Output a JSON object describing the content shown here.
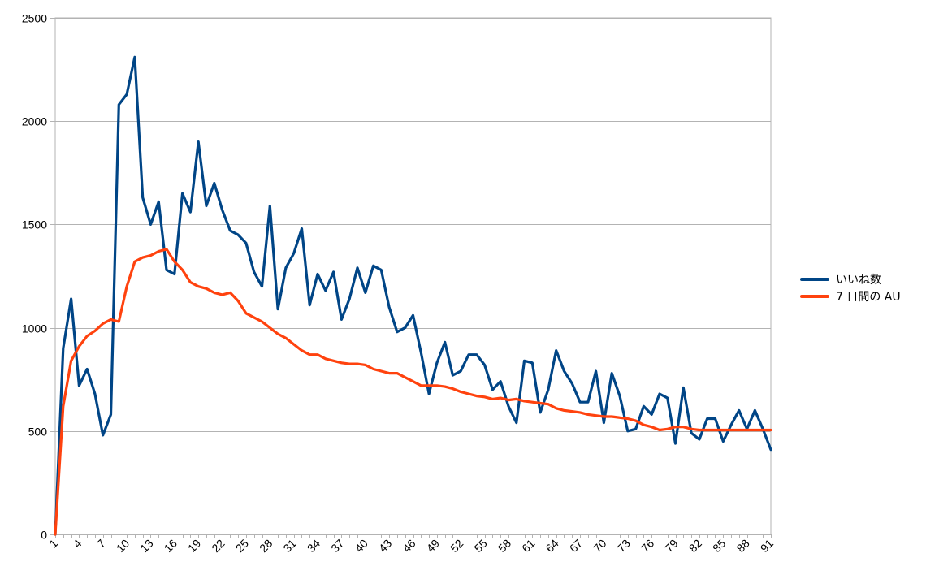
{
  "chart_data": {
    "type": "line",
    "title": "",
    "xlabel": "",
    "ylabel": "",
    "ylim": [
      0,
      2500
    ],
    "yticks": [
      0,
      500,
      1000,
      1500,
      2000,
      2500
    ],
    "x_tick_labels": [
      "1",
      "4",
      "7",
      "10",
      "13",
      "16",
      "19",
      "22",
      "25",
      "28",
      "31",
      "34",
      "37",
      "40",
      "43",
      "46",
      "49",
      "52",
      "55",
      "58",
      "61",
      "64",
      "67",
      "70",
      "73",
      "76",
      "79",
      "82",
      "85",
      "88",
      "91"
    ],
    "x": [
      1,
      2,
      3,
      4,
      5,
      6,
      7,
      8,
      9,
      10,
      11,
      12,
      13,
      14,
      15,
      16,
      17,
      18,
      19,
      20,
      21,
      22,
      23,
      24,
      25,
      26,
      27,
      28,
      29,
      30,
      31,
      32,
      33,
      34,
      35,
      36,
      37,
      38,
      39,
      40,
      41,
      42,
      43,
      44,
      45,
      46,
      47,
      48,
      49,
      50,
      51,
      52,
      53,
      54,
      55,
      56,
      57,
      58,
      59,
      60,
      61,
      62,
      63,
      64,
      65,
      66,
      67,
      68,
      69,
      70,
      71,
      72,
      73,
      74,
      75,
      76,
      77,
      78,
      79,
      80,
      81,
      82,
      83,
      84,
      85,
      86,
      87,
      88,
      89,
      90,
      91
    ],
    "grid": true,
    "legend_position": "right",
    "series": [
      {
        "name": "いいね数",
        "color": "#004586",
        "values": [
          0,
          900,
          1140,
          720,
          800,
          680,
          480,
          580,
          2080,
          2130,
          2310,
          1630,
          1500,
          1610,
          1280,
          1260,
          1650,
          1560,
          1900,
          1590,
          1700,
          1570,
          1470,
          1450,
          1410,
          1270,
          1200,
          1590,
          1090,
          1290,
          1360,
          1480,
          1110,
          1260,
          1180,
          1270,
          1040,
          1140,
          1290,
          1170,
          1300,
          1280,
          1100,
          980,
          1000,
          1060,
          880,
          680,
          830,
          930,
          770,
          790,
          870,
          870,
          820,
          700,
          740,
          620,
          540,
          840,
          830,
          590,
          700,
          890,
          790,
          730,
          640,
          640,
          790,
          540,
          780,
          670,
          500,
          510,
          620,
          580,
          680,
          660,
          440,
          710,
          490,
          460,
          560,
          560,
          450,
          530,
          600,
          510,
          600,
          510,
          410
        ]
      },
      {
        "name": "7  日間の AU",
        "color": "#ff420e",
        "values": [
          0,
          620,
          840,
          910,
          960,
          985,
          1020,
          1040,
          1030,
          1200,
          1320,
          1340,
          1350,
          1370,
          1380,
          1320,
          1280,
          1220,
          1200,
          1190,
          1170,
          1160,
          1170,
          1130,
          1070,
          1050,
          1030,
          1000,
          970,
          950,
          920,
          890,
          870,
          870,
          850,
          840,
          830,
          825,
          825,
          820,
          800,
          790,
          780,
          780,
          760,
          740,
          720,
          720,
          720,
          715,
          705,
          690,
          680,
          670,
          665,
          655,
          660,
          650,
          655,
          645,
          640,
          635,
          630,
          610,
          600,
          595,
          590,
          580,
          575,
          570,
          570,
          565,
          560,
          550,
          530,
          520,
          505,
          510,
          520,
          520,
          510,
          505,
          505,
          505,
          505,
          505,
          505,
          505,
          505,
          505,
          505
        ]
      }
    ]
  }
}
